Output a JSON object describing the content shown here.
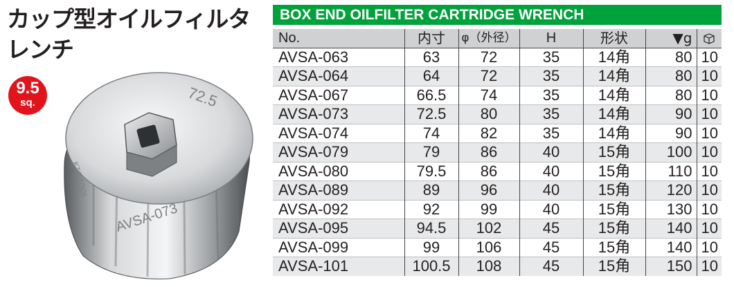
{
  "title": {
    "line1": "カップ型オイルフィルタ",
    "line2": "レンチ"
  },
  "badge": {
    "line1": "9.5",
    "line2": "sq."
  },
  "product": {
    "engraving_top": "72.5",
    "engraving_side": "AVSA-073",
    "engraving_left": "KTC TOOL",
    "brand_color": "#00a23b"
  },
  "banner": {
    "title": "BOX END OILFILTER CARTRIDGE WRENCH"
  },
  "table": {
    "headers": {
      "no": "No.",
      "inner": "内寸",
      "outer": "φ（外径）",
      "h": "H",
      "shape": "形状",
      "weight": "▼g",
      "pack_icon": "package-icon"
    },
    "rows": [
      {
        "no": "AVSA-063",
        "inner": "63",
        "outer": "72",
        "h": "35",
        "shape": "14角",
        "weight": "80",
        "qty": "10"
      },
      {
        "no": "AVSA-064",
        "inner": "64",
        "outer": "72",
        "h": "35",
        "shape": "14角",
        "weight": "80",
        "qty": "10"
      },
      {
        "no": "AVSA-067",
        "inner": "66.5",
        "outer": "74",
        "h": "35",
        "shape": "14角",
        "weight": "80",
        "qty": "10"
      },
      {
        "no": "AVSA-073",
        "inner": "72.5",
        "outer": "80",
        "h": "35",
        "shape": "14角",
        "weight": "90",
        "qty": "10"
      },
      {
        "no": "AVSA-074",
        "inner": "74",
        "outer": "82",
        "h": "35",
        "shape": "14角",
        "weight": "90",
        "qty": "10"
      },
      {
        "no": "AVSA-079",
        "inner": "79",
        "outer": "86",
        "h": "40",
        "shape": "15角",
        "weight": "100",
        "qty": "10"
      },
      {
        "no": "AVSA-080",
        "inner": "79.5",
        "outer": "86",
        "h": "40",
        "shape": "15角",
        "weight": "110",
        "qty": "10"
      },
      {
        "no": "AVSA-089",
        "inner": "89",
        "outer": "96",
        "h": "40",
        "shape": "15角",
        "weight": "120",
        "qty": "10"
      },
      {
        "no": "AVSA-092",
        "inner": "92",
        "outer": "99",
        "h": "40",
        "shape": "15角",
        "weight": "130",
        "qty": "10"
      },
      {
        "no": "AVSA-095",
        "inner": "94.5",
        "outer": "102",
        "h": "45",
        "shape": "15角",
        "weight": "140",
        "qty": "10"
      },
      {
        "no": "AVSA-099",
        "inner": "99",
        "outer": "106",
        "h": "45",
        "shape": "15角",
        "weight": "140",
        "qty": "10"
      },
      {
        "no": "AVSA-101",
        "inner": "100.5",
        "outer": "108",
        "h": "45",
        "shape": "15角",
        "weight": "150",
        "qty": "10"
      }
    ]
  }
}
